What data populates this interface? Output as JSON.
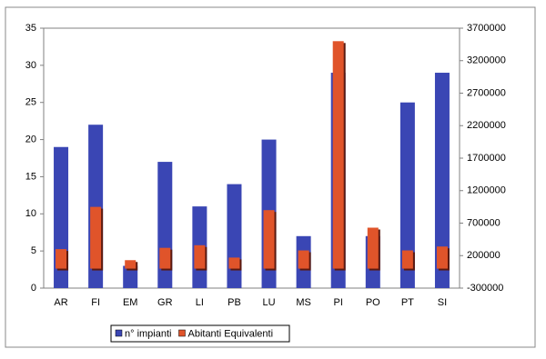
{
  "chart_data": {
    "type": "bar",
    "categories": [
      "AR",
      "FI",
      "EM",
      "GR",
      "LI",
      "PB",
      "LU",
      "MS",
      "PI",
      "PO",
      "PT",
      "SI"
    ],
    "series": [
      {
        "name": "n° impianti",
        "color": "#3a46b4",
        "values": [
          19,
          22,
          3,
          17,
          11,
          14,
          20,
          7,
          29,
          7,
          25,
          29
        ]
      },
      {
        "name": "Abitanti Equivalenti",
        "color": "#e0542a",
        "axis": "y2",
        "values": [
          300000,
          950000,
          130000,
          320000,
          360000,
          170000,
          900000,
          280000,
          3500000,
          630000,
          280000,
          340000
        ]
      }
    ],
    "ylim": [
      0,
      35
    ],
    "yticks": [
      0,
      5,
      10,
      15,
      20,
      25,
      30,
      35
    ],
    "y2lim": [
      -300000,
      3700000
    ],
    "y2ticks": [
      -300000,
      200000,
      700000,
      1200000,
      1700000,
      2200000,
      2700000,
      3200000,
      3700000
    ],
    "grid": false,
    "legend": "bottom"
  }
}
